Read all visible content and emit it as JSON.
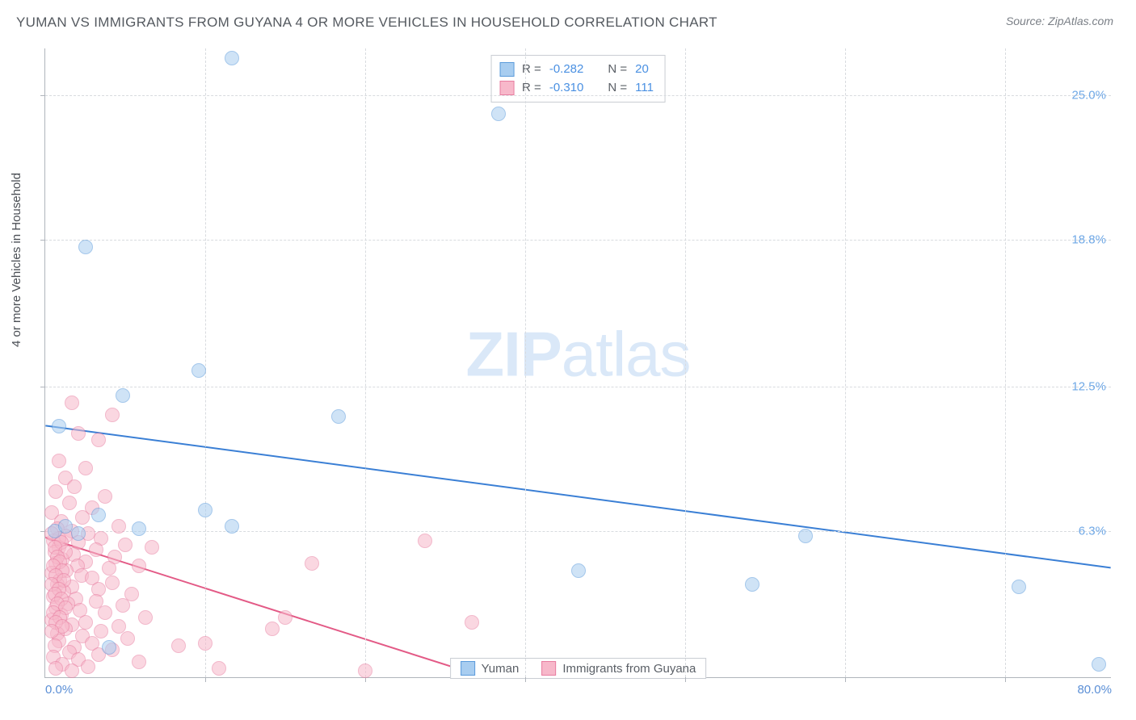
{
  "title": "YUMAN VS IMMIGRANTS FROM GUYANA 4 OR MORE VEHICLES IN HOUSEHOLD CORRELATION CHART",
  "source": "Source: ZipAtlas.com",
  "watermark_bold": "ZIP",
  "watermark_light": "atlas",
  "y_axis_label": "4 or more Vehicles in Household",
  "chart": {
    "type": "scatter",
    "xlim": [
      0,
      80
    ],
    "ylim": [
      0,
      27
    ],
    "x_tick_labels": [
      "0.0%",
      "80.0%"
    ],
    "x_tick_positions": [
      0,
      80
    ],
    "x_grid_positions": [
      12.0,
      24.0,
      36.0,
      48.0,
      60.0,
      72.0
    ],
    "y_tick_labels": [
      "25.0%",
      "18.8%",
      "12.5%",
      "6.3%"
    ],
    "y_tick_positions": [
      25.0,
      18.8,
      12.5,
      6.3
    ],
    "background_color": "#ffffff",
    "grid_color": "#d8dbdf",
    "axis_color": "#b0b5bc",
    "marker_radius": 9,
    "marker_opacity": 0.55,
    "series": [
      {
        "name": "Yuman",
        "color_fill": "#a8cdf0",
        "color_stroke": "#5b9bdb",
        "r_value": "-0.282",
        "n_value": "20",
        "trend": {
          "x1": 0,
          "y1": 10.8,
          "x2": 80,
          "y2": 4.7,
          "color": "#3a7fd5",
          "width": 2
        },
        "points": [
          [
            14.0,
            26.6
          ],
          [
            34.0,
            24.2
          ],
          [
            3.0,
            18.5
          ],
          [
            11.5,
            13.2
          ],
          [
            5.8,
            12.1
          ],
          [
            22.0,
            11.2
          ],
          [
            1.0,
            10.8
          ],
          [
            12.0,
            7.2
          ],
          [
            14.0,
            6.5
          ],
          [
            7.0,
            6.4
          ],
          [
            0.7,
            6.3
          ],
          [
            2.5,
            6.2
          ],
          [
            57.0,
            6.1
          ],
          [
            40.0,
            4.6
          ],
          [
            53.0,
            4.0
          ],
          [
            73.0,
            3.9
          ],
          [
            4.8,
            1.3
          ],
          [
            79.0,
            0.6
          ],
          [
            4.0,
            7.0
          ],
          [
            1.5,
            6.5
          ]
        ]
      },
      {
        "name": "Immigrants from Guyana",
        "color_fill": "#f7b8ca",
        "color_stroke": "#e87da0",
        "r_value": "-0.310",
        "n_value": "111",
        "trend": {
          "x1": 0,
          "y1": 6.0,
          "x2": 33,
          "y2": 0,
          "color": "#e35a86",
          "width": 2
        },
        "points": [
          [
            2.0,
            11.8
          ],
          [
            5.0,
            11.3
          ],
          [
            2.5,
            10.5
          ],
          [
            4.0,
            10.2
          ],
          [
            1.0,
            9.3
          ],
          [
            3.0,
            9.0
          ],
          [
            1.5,
            8.6
          ],
          [
            2.2,
            8.2
          ],
          [
            0.8,
            8.0
          ],
          [
            4.5,
            7.8
          ],
          [
            1.8,
            7.5
          ],
          [
            3.5,
            7.3
          ],
          [
            0.5,
            7.1
          ],
          [
            2.8,
            6.9
          ],
          [
            1.2,
            6.7
          ],
          [
            5.5,
            6.5
          ],
          [
            0.9,
            6.4
          ],
          [
            2.0,
            6.3
          ],
          [
            3.2,
            6.2
          ],
          [
            1.5,
            6.1
          ],
          [
            4.2,
            6.0
          ],
          [
            0.6,
            5.9
          ],
          [
            2.5,
            5.8
          ],
          [
            6.0,
            5.7
          ],
          [
            1.0,
            5.6
          ],
          [
            3.8,
            5.5
          ],
          [
            0.7,
            5.4
          ],
          [
            2.1,
            5.3
          ],
          [
            5.2,
            5.2
          ],
          [
            1.3,
            5.1
          ],
          [
            3.0,
            5.0
          ],
          [
            8.0,
            5.6
          ],
          [
            0.8,
            4.9
          ],
          [
            2.4,
            4.8
          ],
          [
            4.8,
            4.7
          ],
          [
            1.6,
            4.6
          ],
          [
            7.0,
            4.8
          ],
          [
            0.5,
            4.5
          ],
          [
            2.7,
            4.4
          ],
          [
            3.5,
            4.3
          ],
          [
            1.1,
            4.2
          ],
          [
            5.0,
            4.1
          ],
          [
            0.9,
            4.0
          ],
          [
            2.0,
            3.9
          ],
          [
            4.0,
            3.8
          ],
          [
            1.4,
            3.7
          ],
          [
            28.5,
            5.9
          ],
          [
            20.0,
            4.9
          ],
          [
            6.5,
            3.6
          ],
          [
            0.6,
            3.5
          ],
          [
            2.3,
            3.4
          ],
          [
            3.8,
            3.3
          ],
          [
            1.7,
            3.2
          ],
          [
            5.8,
            3.1
          ],
          [
            0.8,
            3.0
          ],
          [
            2.6,
            2.9
          ],
          [
            4.5,
            2.8
          ],
          [
            1.2,
            2.7
          ],
          [
            7.5,
            2.6
          ],
          [
            0.5,
            2.5
          ],
          [
            3.0,
            2.4
          ],
          [
            2.0,
            2.3
          ],
          [
            5.5,
            2.2
          ],
          [
            1.5,
            2.1
          ],
          [
            4.2,
            2.0
          ],
          [
            0.9,
            1.9
          ],
          [
            17.0,
            2.1
          ],
          [
            2.8,
            1.8
          ],
          [
            6.2,
            1.7
          ],
          [
            1.0,
            1.6
          ],
          [
            3.5,
            1.5
          ],
          [
            0.7,
            1.4
          ],
          [
            2.2,
            1.3
          ],
          [
            5.0,
            1.2
          ],
          [
            18.0,
            2.6
          ],
          [
            1.8,
            1.1
          ],
          [
            4.0,
            1.0
          ],
          [
            0.6,
            0.9
          ],
          [
            2.5,
            0.8
          ],
          [
            12.0,
            1.5
          ],
          [
            7.0,
            0.7
          ],
          [
            1.3,
            0.6
          ],
          [
            3.2,
            0.5
          ],
          [
            32.0,
            2.4
          ],
          [
            0.8,
            0.4
          ],
          [
            2.0,
            0.3
          ],
          [
            24.0,
            0.3
          ],
          [
            13.0,
            0.4
          ],
          [
            10.0,
            1.4
          ],
          [
            1.0,
            6.0
          ],
          [
            0.5,
            6.2
          ],
          [
            1.2,
            5.8
          ],
          [
            0.7,
            5.6
          ],
          [
            1.5,
            5.4
          ],
          [
            0.9,
            5.2
          ],
          [
            1.1,
            5.0
          ],
          [
            0.6,
            4.8
          ],
          [
            1.3,
            4.6
          ],
          [
            0.8,
            4.4
          ],
          [
            1.4,
            4.2
          ],
          [
            0.5,
            4.0
          ],
          [
            1.0,
            3.8
          ],
          [
            0.7,
            3.6
          ],
          [
            1.2,
            3.4
          ],
          [
            0.9,
            3.2
          ],
          [
            1.5,
            3.0
          ],
          [
            0.6,
            2.8
          ],
          [
            1.1,
            2.6
          ],
          [
            0.8,
            2.4
          ],
          [
            1.3,
            2.2
          ],
          [
            0.5,
            2.0
          ]
        ]
      }
    ],
    "legend_stats": {
      "r_label": "R =",
      "n_label": "N ="
    },
    "bottom_legend": [
      "Yuman",
      "Immigrants from Guyana"
    ]
  }
}
